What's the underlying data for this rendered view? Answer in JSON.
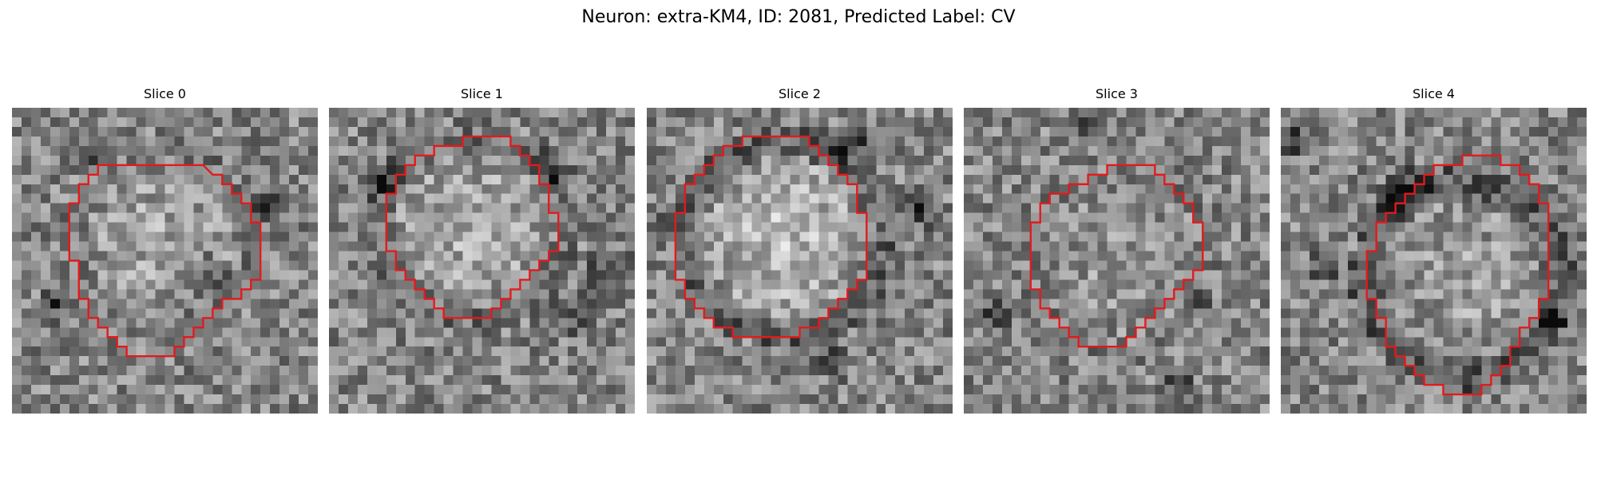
{
  "figure": {
    "title": "Neuron: extra-KM4, ID: 2081, Predicted Label: CV"
  },
  "chart_data": {
    "type": "heatmap",
    "title": "Neuron: extra-KM4, ID: 2081, Predicted Label: CV",
    "colormap": "gray",
    "contour_color": "#e31a1c",
    "grid_on": false,
    "axes_visible": false,
    "image_grid_size": [
      32,
      32
    ],
    "panels": [
      {
        "title": "Slice 0",
        "seed": 11,
        "blob": {
          "cx": 15.5,
          "cy": 13.5,
          "radius": 8.5,
          "contrast": 0.14,
          "ring": -0.04
        },
        "darks": [
          [
            7.5,
            5.5,
            1.2
          ],
          [
            20.5,
            17.5,
            1.6
          ],
          [
            4.5,
            20.5,
            1.3
          ],
          [
            26.5,
            10.5,
            1.4
          ]
        ],
        "contour": [
          [
            10,
            6
          ],
          [
            20,
            6
          ],
          [
            21,
            7
          ],
          [
            22,
            7
          ],
          [
            22,
            8
          ],
          [
            23,
            8
          ],
          [
            23,
            9
          ],
          [
            24,
            9
          ],
          [
            24,
            10
          ],
          [
            25,
            10
          ],
          [
            25,
            12
          ],
          [
            26,
            12
          ],
          [
            26,
            18
          ],
          [
            25,
            18
          ],
          [
            25,
            19
          ],
          [
            24,
            19
          ],
          [
            24,
            20
          ],
          [
            22,
            20
          ],
          [
            22,
            21
          ],
          [
            21,
            21
          ],
          [
            21,
            22
          ],
          [
            20,
            22
          ],
          [
            20,
            23
          ],
          [
            19,
            23
          ],
          [
            19,
            24
          ],
          [
            18,
            24
          ],
          [
            18,
            25
          ],
          [
            17,
            25
          ],
          [
            17,
            26
          ],
          [
            12,
            26
          ],
          [
            12,
            25
          ],
          [
            11,
            25
          ],
          [
            11,
            24
          ],
          [
            10,
            24
          ],
          [
            10,
            23
          ],
          [
            9,
            23
          ],
          [
            9,
            22
          ],
          [
            8,
            22
          ],
          [
            8,
            20
          ],
          [
            7,
            20
          ],
          [
            7,
            16
          ],
          [
            6,
            16
          ],
          [
            6,
            10
          ],
          [
            7,
            10
          ],
          [
            7,
            8
          ],
          [
            8,
            8
          ],
          [
            8,
            7
          ],
          [
            9,
            7
          ],
          [
            9,
            6
          ]
        ]
      },
      {
        "title": "Slice 1",
        "seed": 23,
        "blob": {
          "cx": 15.0,
          "cy": 12.5,
          "radius": 9.0,
          "contrast": 0.18,
          "ring": -0.08
        },
        "darks": [
          [
            5.5,
            7.5,
            1.5
          ],
          [
            29.5,
            17.5,
            2.0
          ],
          [
            25.5,
            21.5,
            1.5
          ],
          [
            23.5,
            6.5,
            1.4
          ]
        ],
        "contour": [
          [
            14,
            3
          ],
          [
            19,
            3
          ],
          [
            19,
            4
          ],
          [
            20,
            4
          ],
          [
            20,
            5
          ],
          [
            21,
            5
          ],
          [
            21,
            6
          ],
          [
            22,
            6
          ],
          [
            22,
            8
          ],
          [
            23,
            8
          ],
          [
            23,
            11
          ],
          [
            24,
            11
          ],
          [
            24,
            15
          ],
          [
            23,
            15
          ],
          [
            23,
            16
          ],
          [
            22,
            16
          ],
          [
            22,
            17
          ],
          [
            21,
            17
          ],
          [
            21,
            18
          ],
          [
            20,
            18
          ],
          [
            20,
            19
          ],
          [
            19,
            19
          ],
          [
            19,
            20
          ],
          [
            18,
            20
          ],
          [
            18,
            21
          ],
          [
            17,
            21
          ],
          [
            17,
            22
          ],
          [
            12,
            22
          ],
          [
            12,
            21
          ],
          [
            11,
            21
          ],
          [
            11,
            20
          ],
          [
            10,
            20
          ],
          [
            10,
            19
          ],
          [
            9,
            19
          ],
          [
            9,
            18
          ],
          [
            8,
            18
          ],
          [
            8,
            17
          ],
          [
            7,
            17
          ],
          [
            7,
            15
          ],
          [
            6,
            15
          ],
          [
            6,
            9
          ],
          [
            7,
            9
          ],
          [
            7,
            7
          ],
          [
            8,
            7
          ],
          [
            8,
            6
          ],
          [
            9,
            6
          ],
          [
            9,
            5
          ],
          [
            11,
            5
          ],
          [
            11,
            4
          ],
          [
            14,
            4
          ]
        ]
      },
      {
        "title": "Slice 2",
        "seed": 37,
        "blob": {
          "cx": 14.5,
          "cy": 13.5,
          "radius": 9.5,
          "contrast": 0.24,
          "ring": -0.14
        },
        "darks": [
          [
            19.5,
            4.5,
            1.5
          ],
          [
            22.5,
            3.5,
            1.2
          ],
          [
            28.5,
            10.5,
            1.6
          ],
          [
            19.5,
            26.5,
            1.4
          ],
          [
            1.5,
            12.5,
            1.1
          ]
        ],
        "contour": [
          [
            11,
            3
          ],
          [
            17,
            3
          ],
          [
            17,
            4
          ],
          [
            18,
            4
          ],
          [
            18,
            5
          ],
          [
            19,
            5
          ],
          [
            19,
            6
          ],
          [
            20,
            6
          ],
          [
            20,
            7
          ],
          [
            21,
            7
          ],
          [
            21,
            8
          ],
          [
            22,
            8
          ],
          [
            22,
            11
          ],
          [
            23,
            11
          ],
          [
            23,
            18
          ],
          [
            22,
            18
          ],
          [
            22,
            19
          ],
          [
            21,
            19
          ],
          [
            21,
            20
          ],
          [
            20,
            20
          ],
          [
            20,
            21
          ],
          [
            19,
            21
          ],
          [
            19,
            22
          ],
          [
            18,
            22
          ],
          [
            18,
            23
          ],
          [
            16,
            23
          ],
          [
            16,
            24
          ],
          [
            9,
            24
          ],
          [
            9,
            23
          ],
          [
            7,
            23
          ],
          [
            7,
            22
          ],
          [
            6,
            22
          ],
          [
            6,
            21
          ],
          [
            5,
            21
          ],
          [
            5,
            20
          ],
          [
            4,
            20
          ],
          [
            4,
            18
          ],
          [
            3,
            18
          ],
          [
            3,
            11
          ],
          [
            4,
            11
          ],
          [
            4,
            8
          ],
          [
            5,
            8
          ],
          [
            5,
            7
          ],
          [
            6,
            7
          ],
          [
            6,
            6
          ],
          [
            7,
            6
          ],
          [
            7,
            5
          ],
          [
            8,
            5
          ],
          [
            8,
            4
          ],
          [
            10,
            4
          ],
          [
            10,
            3
          ]
        ]
      },
      {
        "title": "Slice 3",
        "seed": 53,
        "blob": {
          "cx": 16.5,
          "cy": 16.0,
          "radius": 8.5,
          "contrast": 0.08,
          "ring": -0.02
        },
        "darks": [
          [
            3.5,
            21.5,
            1.3
          ],
          [
            22.5,
            29.5,
            1.4
          ],
          [
            24.5,
            20.5,
            1.0
          ],
          [
            12.5,
            2.5,
            1.1
          ]
        ],
        "contour": [
          [
            16,
            6
          ],
          [
            20,
            6
          ],
          [
            20,
            7
          ],
          [
            21,
            7
          ],
          [
            21,
            8
          ],
          [
            22,
            8
          ],
          [
            22,
            9
          ],
          [
            23,
            9
          ],
          [
            23,
            10
          ],
          [
            24,
            10
          ],
          [
            24,
            12
          ],
          [
            25,
            12
          ],
          [
            25,
            17
          ],
          [
            24,
            17
          ],
          [
            24,
            18
          ],
          [
            23,
            18
          ],
          [
            23,
            19
          ],
          [
            22,
            19
          ],
          [
            22,
            20
          ],
          [
            21,
            20
          ],
          [
            21,
            21
          ],
          [
            20,
            21
          ],
          [
            20,
            22
          ],
          [
            19,
            22
          ],
          [
            19,
            23
          ],
          [
            18,
            23
          ],
          [
            18,
            24
          ],
          [
            17,
            24
          ],
          [
            17,
            25
          ],
          [
            12,
            25
          ],
          [
            12,
            24
          ],
          [
            11,
            24
          ],
          [
            11,
            23
          ],
          [
            10,
            23
          ],
          [
            10,
            22
          ],
          [
            9,
            22
          ],
          [
            9,
            21
          ],
          [
            8,
            21
          ],
          [
            8,
            19
          ],
          [
            7,
            19
          ],
          [
            7,
            12
          ],
          [
            8,
            12
          ],
          [
            8,
            10
          ],
          [
            9,
            10
          ],
          [
            9,
            9
          ],
          [
            11,
            9
          ],
          [
            11,
            8
          ],
          [
            13,
            8
          ],
          [
            13,
            7
          ],
          [
            15,
            7
          ],
          [
            15,
            6
          ]
        ]
      },
      {
        "title": "Slice 4",
        "seed": 71,
        "blob": {
          "cx": 19.0,
          "cy": 18.0,
          "radius": 9.5,
          "contrast": 0.1,
          "ring": -0.16
        },
        "darks": [
          [
            13.5,
            8.5,
            1.8
          ],
          [
            11.5,
            10.5,
            1.5
          ],
          [
            4.5,
            16.5,
            1.2
          ],
          [
            28.5,
            22.5,
            1.2
          ],
          [
            1.5,
            3.5,
            1.3
          ]
        ],
        "contour": [
          [
            19,
            5
          ],
          [
            23,
            5
          ],
          [
            23,
            6
          ],
          [
            25,
            6
          ],
          [
            25,
            7
          ],
          [
            26,
            7
          ],
          [
            26,
            8
          ],
          [
            27,
            8
          ],
          [
            27,
            10
          ],
          [
            28,
            10
          ],
          [
            28,
            20
          ],
          [
            27,
            20
          ],
          [
            27,
            22
          ],
          [
            26,
            22
          ],
          [
            26,
            23
          ],
          [
            25,
            23
          ],
          [
            25,
            25
          ],
          [
            24,
            25
          ],
          [
            24,
            27
          ],
          [
            23,
            27
          ],
          [
            23,
            28
          ],
          [
            22,
            28
          ],
          [
            22,
            29
          ],
          [
            21,
            29
          ],
          [
            21,
            30
          ],
          [
            17,
            30
          ],
          [
            17,
            29
          ],
          [
            15,
            29
          ],
          [
            15,
            28
          ],
          [
            14,
            28
          ],
          [
            14,
            27
          ],
          [
            13,
            27
          ],
          [
            13,
            26
          ],
          [
            12,
            26
          ],
          [
            12,
            25
          ],
          [
            11,
            25
          ],
          [
            11,
            22
          ],
          [
            10,
            22
          ],
          [
            10,
            20
          ],
          [
            9,
            20
          ],
          [
            9,
            15
          ],
          [
            10,
            15
          ],
          [
            10,
            12
          ],
          [
            11,
            12
          ],
          [
            11,
            11
          ],
          [
            12,
            11
          ],
          [
            12,
            10
          ],
          [
            13,
            10
          ],
          [
            13,
            9
          ],
          [
            14,
            9
          ],
          [
            14,
            8
          ],
          [
            15,
            8
          ],
          [
            15,
            7
          ],
          [
            16,
            7
          ],
          [
            16,
            6
          ],
          [
            19,
            6
          ]
        ]
      }
    ]
  }
}
